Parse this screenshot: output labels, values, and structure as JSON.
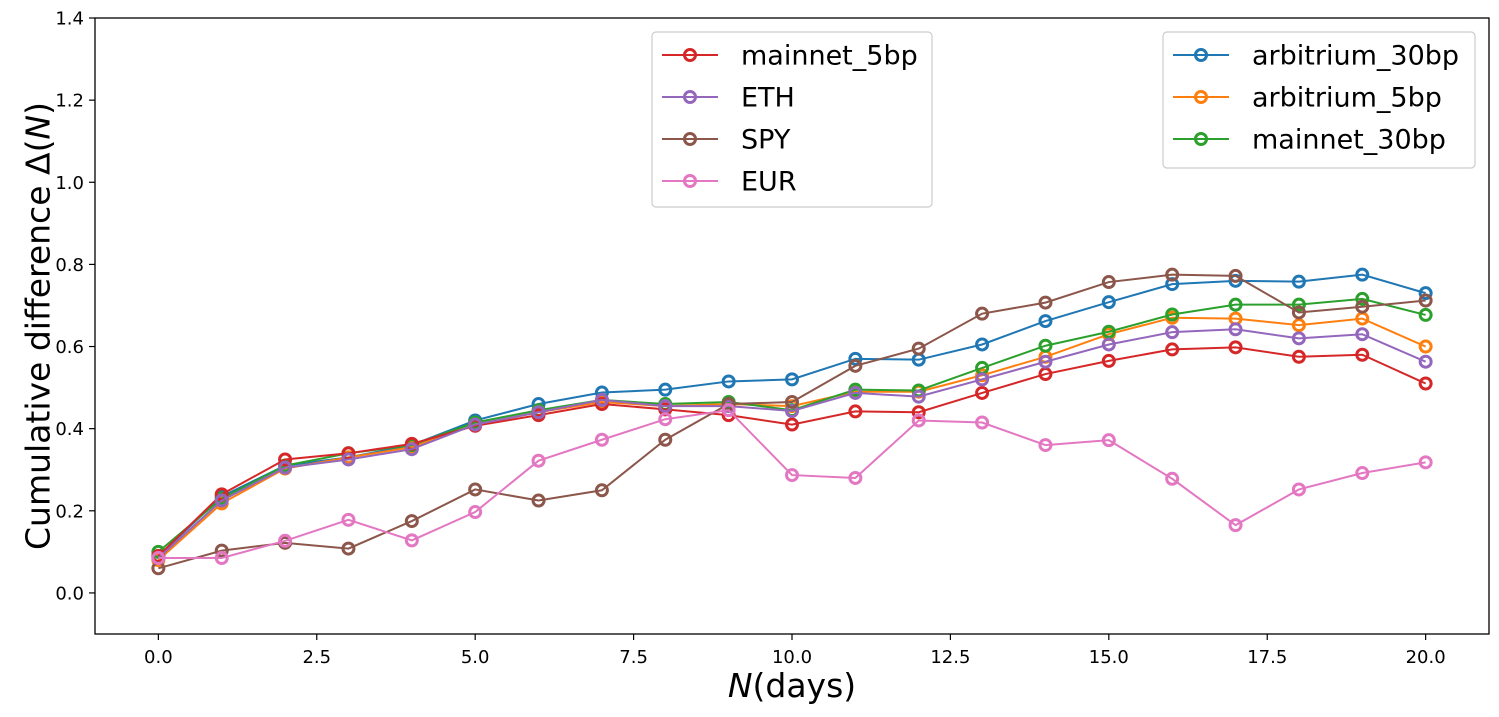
{
  "chart_data": {
    "type": "line",
    "title": "",
    "xlabel": "N(days)",
    "xlabel_parts": {
      "italic": "N",
      "rest": "(days)"
    },
    "ylabel": "Cumulative difference Δ(N)",
    "ylabel_parts": {
      "prefix": "Cumulative difference Δ(",
      "italic": "N",
      "suffix": ")"
    },
    "xlim": [
      -1,
      21
    ],
    "ylim": [
      -0.1,
      1.4
    ],
    "xticks": [
      0.0,
      2.5,
      5.0,
      7.5,
      10.0,
      12.5,
      15.0,
      17.5,
      20.0
    ],
    "xtick_labels": [
      "0.0",
      "2.5",
      "5.0",
      "7.5",
      "10.0",
      "12.5",
      "15.0",
      "17.5",
      "20.0"
    ],
    "yticks": [
      0.0,
      0.2,
      0.4,
      0.6,
      0.8,
      1.0,
      1.2,
      1.4
    ],
    "ytick_labels": [
      "0.0",
      "0.2",
      "0.4",
      "0.6",
      "0.8",
      "1.0",
      "1.2",
      "1.4"
    ],
    "grid": false,
    "x": [
      0,
      1,
      2,
      3,
      4,
      5,
      6,
      7,
      8,
      9,
      10,
      11,
      12,
      13,
      14,
      15,
      16,
      17,
      18,
      19,
      20
    ],
    "series": [
      {
        "name": "arbitrium_30bp",
        "color": "#1f77b4",
        "values": [
          0.09,
          0.235,
          0.31,
          0.33,
          0.36,
          0.42,
          0.46,
          0.488,
          0.495,
          0.515,
          0.52,
          0.57,
          0.568,
          0.605,
          0.662,
          0.708,
          0.752,
          0.76,
          0.758,
          0.775,
          0.73
        ]
      },
      {
        "name": "arbitrium_5bp",
        "color": "#ff7f0e",
        "values": [
          0.08,
          0.218,
          0.303,
          0.33,
          0.355,
          0.41,
          0.44,
          0.465,
          0.455,
          0.46,
          0.455,
          0.49,
          0.49,
          0.53,
          0.575,
          0.63,
          0.67,
          0.668,
          0.652,
          0.668,
          0.6
        ]
      },
      {
        "name": "mainnet_30bp",
        "color": "#2ca02c",
        "values": [
          0.1,
          0.23,
          0.31,
          0.34,
          0.36,
          0.415,
          0.445,
          0.47,
          0.46,
          0.465,
          0.445,
          0.495,
          0.493,
          0.548,
          0.602,
          0.636,
          0.678,
          0.702,
          0.702,
          0.716,
          0.677
        ]
      },
      {
        "name": "mainnet_5bp",
        "color": "#d62728",
        "values": [
          0.09,
          0.24,
          0.325,
          0.34,
          0.363,
          0.407,
          0.433,
          0.46,
          0.447,
          0.433,
          0.41,
          0.442,
          0.44,
          0.487,
          0.533,
          0.565,
          0.593,
          0.598,
          0.575,
          0.58,
          0.51
        ]
      },
      {
        "name": "ETH",
        "color": "#9467bd",
        "values": [
          0.085,
          0.225,
          0.305,
          0.325,
          0.35,
          0.41,
          0.44,
          0.47,
          0.455,
          0.455,
          0.443,
          0.487,
          0.478,
          0.52,
          0.563,
          0.605,
          0.635,
          0.642,
          0.62,
          0.63,
          0.563
        ]
      },
      {
        "name": "SPY",
        "color": "#8c564b",
        "values": [
          0.06,
          0.103,
          0.122,
          0.108,
          0.175,
          0.252,
          0.225,
          0.25,
          0.373,
          0.46,
          0.465,
          0.553,
          0.595,
          0.68,
          0.707,
          0.757,
          0.775,
          0.772,
          0.683,
          0.697,
          0.712
        ]
      },
      {
        "name": "EUR",
        "color": "#e377c2",
        "values": [
          0.085,
          0.085,
          0.127,
          0.178,
          0.128,
          0.197,
          0.322,
          0.373,
          0.423,
          0.445,
          0.287,
          0.28,
          0.42,
          0.415,
          0.36,
          0.372,
          0.278,
          0.165,
          0.252,
          0.292,
          0.318
        ]
      }
    ],
    "legends": [
      {
        "placement": "top-center",
        "entries": [
          "mainnet_5bp",
          "ETH",
          "SPY",
          "EUR"
        ]
      },
      {
        "placement": "top-right",
        "entries": [
          "arbitrium_30bp",
          "arbitrium_5bp",
          "mainnet_30bp"
        ]
      }
    ]
  }
}
